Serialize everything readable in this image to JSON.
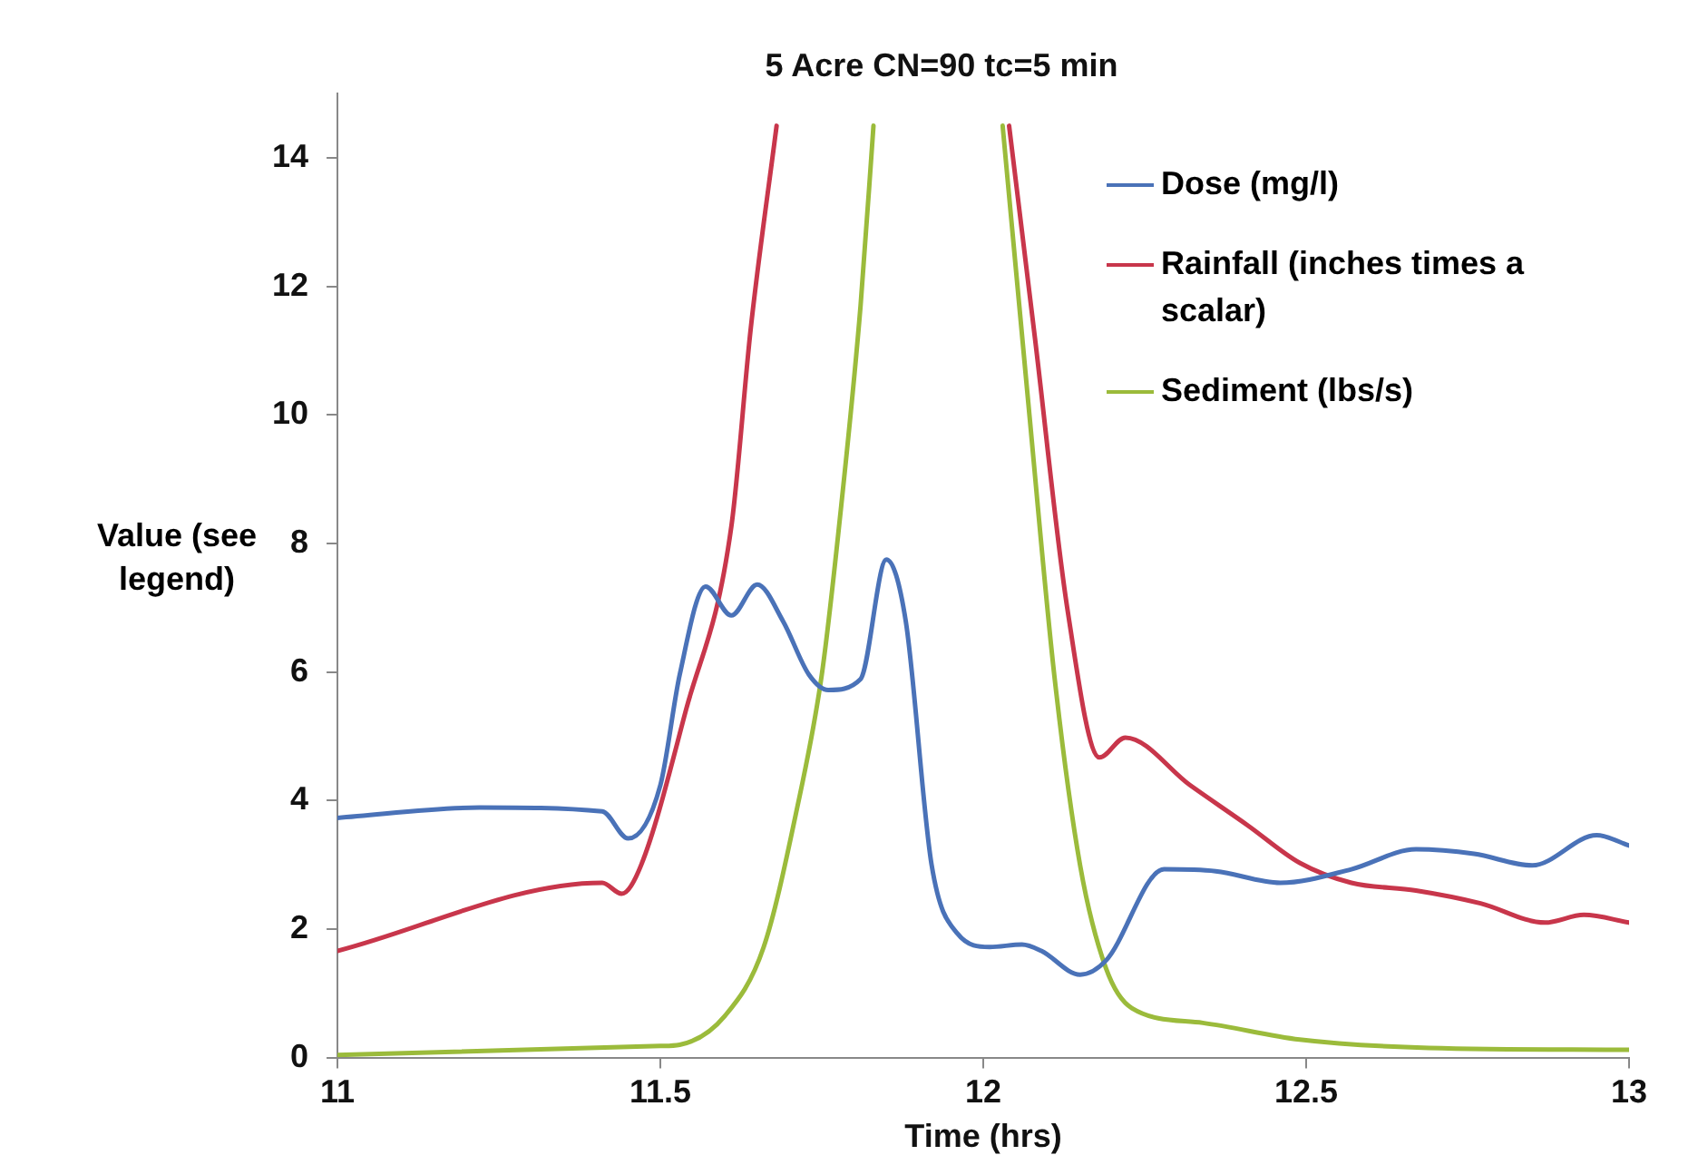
{
  "chart_data": {
    "type": "line",
    "title": "5 Acre CN=90 tc=5 min",
    "xlabel": "Time (hrs)",
    "ylabel": "Value (see legend)",
    "xlim": [
      11,
      13
    ],
    "xticks": [
      11,
      11.5,
      12,
      12.5,
      13
    ],
    "ylim": [
      0,
      15
    ],
    "yticks": [
      0,
      2,
      4,
      6,
      8,
      10,
      12,
      14
    ],
    "grid": false,
    "legend": "top right",
    "marker": "none",
    "line_style": "solid",
    "series": [
      {
        "name": "Dose (mg/l)",
        "color": "#4a72b8",
        "x": [
          11,
          11.22,
          11.41,
          11.45,
          11.5,
          11.53,
          11.57,
          11.61,
          11.65,
          11.69,
          11.73,
          11.76,
          11.81,
          11.85,
          11.88,
          11.92,
          11.96,
          12.01,
          12.06,
          12.09,
          12.15,
          12.19,
          12.28,
          12.36,
          12.46,
          12.57,
          12.67,
          12.76,
          12.85,
          12.95,
          13
        ],
        "values": [
          3.73,
          3.89,
          3.83,
          3.41,
          4.24,
          5.96,
          7.33,
          6.88,
          7.36,
          6.79,
          5.96,
          5.72,
          5.89,
          7.75,
          6.79,
          3.0,
          1.93,
          1.72,
          1.76,
          1.66,
          1.29,
          1.51,
          2.93,
          2.9,
          2.72,
          2.93,
          3.24,
          3.17,
          2.99,
          3.46,
          3.3
        ]
      },
      {
        "name": "Rainfall (inches times a scalar)",
        "color": "#c8364b",
        "x": [
          11,
          11.41,
          11.44,
          11.47,
          11.54,
          11.61,
          11.64,
          11.68,
          11.86,
          12.04,
          12.08,
          12.13,
          12.18,
          12.22,
          12.32,
          12.41,
          12.49,
          12.57,
          12.67,
          12.77,
          12.87,
          12.93,
          13
        ],
        "values": [
          1.66,
          2.72,
          2.55,
          2.99,
          5.42,
          8.27,
          11.35,
          14.5,
          null,
          14.5,
          11.2,
          7.0,
          4.67,
          4.98,
          4.24,
          3.61,
          3.03,
          2.72,
          2.6,
          2.4,
          2.1,
          2.22,
          2.1
        ]
      },
      {
        "name": "Sediment (lbs/s)",
        "color": "#9bbb3b",
        "x": [
          11,
          11.5,
          11.53,
          11.6,
          11.66,
          11.71,
          11.75,
          11.78,
          11.81,
          11.83,
          11.93,
          12.03,
          12.07,
          12.11,
          12.15,
          12.19,
          12.23,
          12.34,
          12.49,
          12.69,
          13
        ],
        "values": [
          0.04,
          0.18,
          0.2,
          0.65,
          1.72,
          3.8,
          5.96,
          8.58,
          11.7,
          14.5,
          null,
          14.5,
          10.16,
          5.95,
          2.99,
          1.39,
          0.77,
          0.54,
          0.28,
          0.15,
          0.12
        ]
      }
    ]
  }
}
